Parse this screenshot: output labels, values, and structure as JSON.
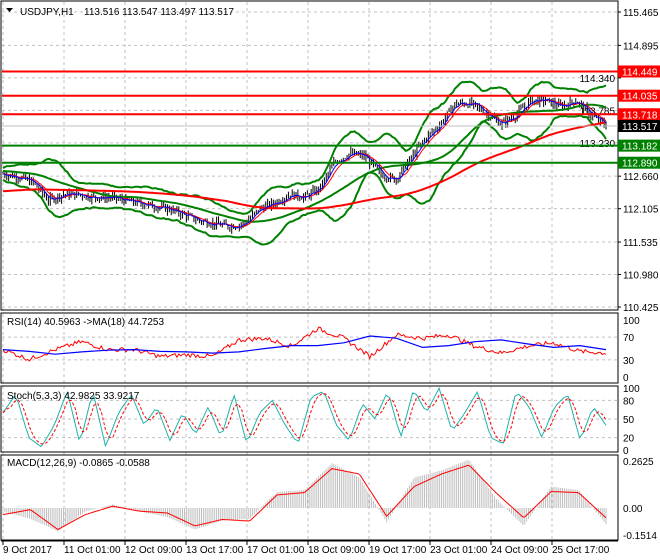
{
  "chart_data": {
    "type": "ohlc",
    "symbol_header": "USDJPY,H1",
    "ohlc_header": "113.516 113.547 113.497 113.517",
    "current_price": "113.517",
    "price_ticks": [
      "115.465",
      "114.895",
      "114.340",
      "113.785",
      "113.230",
      "112.660",
      "112.105",
      "111.535",
      "110.980",
      "110.425"
    ],
    "price_range": [
      110.425,
      115.465
    ],
    "time_ticks": [
      "9 Oct 2017",
      "11 Oct 01:00",
      "12 Oct 09:00",
      "13 Oct 17:00",
      "17 Oct 01:00",
      "18 Oct 09:00",
      "19 Oct 17:00",
      "23 Oct 01:00",
      "24 Oct 09:00",
      "25 Oct 17:00"
    ],
    "close_approx": [
      112.7,
      112.65,
      112.55,
      112.25,
      112.35,
      112.35,
      112.3,
      112.3,
      112.25,
      112.2,
      112.15,
      112.1,
      112.0,
      111.9,
      111.85,
      111.8,
      111.85,
      112.1,
      112.2,
      112.35,
      112.3,
      112.45,
      112.9,
      113.05,
      113.0,
      112.7,
      112.6,
      112.95,
      113.3,
      113.55,
      113.9,
      113.9,
      113.75,
      113.55,
      113.7,
      113.95,
      113.95,
      113.85,
      113.95,
      113.7,
      113.52
    ],
    "levels": [
      {
        "value": "114.449",
        "color": "#ff0000"
      },
      {
        "value": "114.035",
        "color": "#ff0000"
      },
      {
        "value": "113.718",
        "color": "#ff0000"
      },
      {
        "value": "113.182",
        "color": "#008000"
      },
      {
        "value": "112.890",
        "color": "#008000"
      }
    ],
    "rsi": {
      "header": "RSI(14) 40.5963  ->MA(18) 44.7253",
      "ticks": [
        "100",
        "70",
        "30",
        "0"
      ],
      "range": [
        0,
        100
      ],
      "values": [
        48,
        31,
        48,
        62,
        48,
        48,
        36,
        39,
        36,
        65,
        68,
        54,
        85,
        68,
        36,
        74,
        68,
        74,
        54,
        42,
        54,
        60,
        45,
        42
      ],
      "ma": [
        48,
        45,
        40,
        44,
        47,
        48,
        45,
        44,
        42,
        44,
        50,
        55,
        55,
        60,
        72,
        68,
        52,
        55,
        62,
        65,
        58,
        52,
        55,
        48
      ],
      "colors": {
        "rsi": "#ff0000",
        "ma": "#0000ff"
      }
    },
    "stoch": {
      "header": "Stoch(5,3,3) 42.9825 33.9217",
      "ticks": [
        "100",
        "80",
        "50",
        "20",
        "0"
      ],
      "range": [
        0,
        100
      ],
      "main": [
        60,
        90,
        20,
        5,
        40,
        95,
        10,
        95,
        5,
        60,
        90,
        40,
        70,
        15,
        60,
        25,
        70,
        20,
        90,
        10,
        60,
        80,
        40,
        10,
        85,
        95,
        40,
        15,
        75,
        50,
        95,
        20,
        98,
        60,
        100,
        30,
        60,
        95,
        20,
        10,
        95,
        70,
        20,
        70,
        90,
        15,
        70,
        40
      ],
      "colors": {
        "main": "#20b2aa",
        "signal": "#ff0000"
      }
    },
    "macd": {
      "header": "MACD(12,26,9) -0.0865 -0.0588",
      "ticks": [
        "0.2625",
        "0.00",
        "-0.1514"
      ],
      "range": [
        -0.1514,
        0.2625
      ],
      "main": [
        -0.02,
        -0.06,
        -0.13,
        -0.02,
        0.02,
        -0.02,
        -0.05,
        -0.12,
        -0.07,
        -0.06,
        0.09,
        0.1,
        0.25,
        0.17,
        -0.08,
        0.17,
        0.21,
        0.27,
        0.05,
        -0.1,
        0.12,
        0.1,
        -0.09
      ],
      "signal": [
        -0.037,
        -0.009,
        -0.12,
        -0.037,
        0.01,
        -0.018,
        -0.028,
        -0.1,
        -0.064,
        -0.073,
        0.073,
        0.086,
        0.22,
        0.19,
        -0.046,
        0.12,
        0.19,
        0.24,
        0.083,
        -0.055,
        0.092,
        0.086,
        -0.055
      ],
      "colors": {
        "main": "#c0c0c0",
        "signal": "#ff0000"
      }
    }
  }
}
